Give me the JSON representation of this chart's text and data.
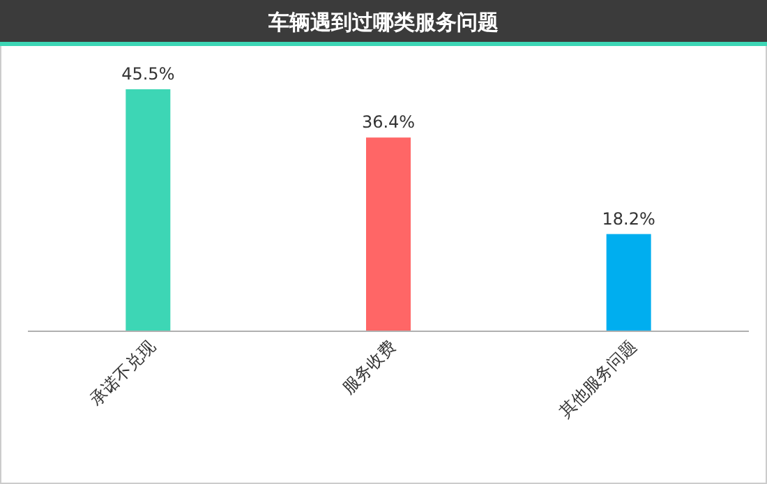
{
  "chart_data": {
    "type": "bar",
    "title": "车辆遇到过哪类服务问题",
    "categories": [
      "承诺不兑现",
      "服务收费",
      "其他服务问题"
    ],
    "values": [
      45.5,
      36.4,
      18.2
    ],
    "value_labels": [
      "45.5%",
      "36.4%",
      "18.2%"
    ],
    "colors": [
      "#3dd6b5",
      "#ff6666",
      "#00aeef"
    ]
  }
}
